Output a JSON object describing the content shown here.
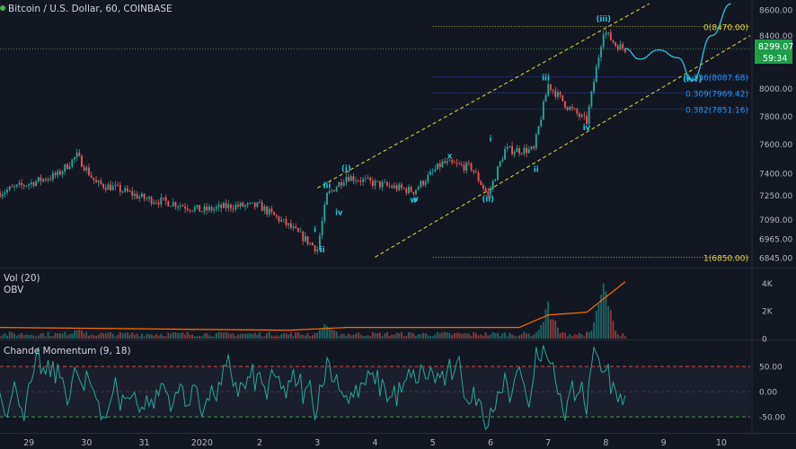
{
  "header": {
    "symbol_title": "Bitcoin / U.S. Dollar, 60, COINBASE"
  },
  "price_badge": {
    "value": "8299.07",
    "countdown": "59:34"
  },
  "colors": {
    "background": "#131722",
    "up_candle": "#26a69a",
    "down_candle": "#ef5350",
    "wave_label": "#26c6da",
    "fib_yellow": "#e6d93c",
    "fib_blue": "#2962ff",
    "projection": "#26c6da",
    "obv_line": "#ff6d00",
    "cmo_line": "#26a69a",
    "level_red": "#ef5350",
    "level_green": "#4caf50",
    "badge_green": "#1e9e4a"
  },
  "wave_labels": [
    {
      "text": "ii",
      "date": "2020-01-03T02:00",
      "price": 6880
    },
    {
      "text": "i",
      "date": "2020-01-02T23:00",
      "price": 7010
    },
    {
      "text": "iii",
      "date": "2020-01-03T04:00",
      "price": 7300
    },
    {
      "text": "(i)",
      "date": "2020-01-03T12:00",
      "price": 7415
    },
    {
      "text": "iv",
      "date": "2020-01-03T09:00",
      "price": 7120
    },
    {
      "text": "v",
      "date": "2020-01-04T17:00",
      "price": 7210
    },
    {
      "text": "w",
      "date": "2020-01-04T16:00",
      "price": 7205
    },
    {
      "text": "x",
      "date": "2020-01-05T07:00",
      "price": 7500
    },
    {
      "text": "(ii)",
      "date": "2020-01-05T23:00",
      "price": 7210
    },
    {
      "text": "i",
      "date": "2020-01-06T00:00",
      "price": 7620
    },
    {
      "text": "ii",
      "date": "2020-01-06T19:00",
      "price": 7410
    },
    {
      "text": "iii",
      "date": "2020-01-06T23:00",
      "price": 8060
    },
    {
      "text": "iv",
      "date": "2020-01-07T16:00",
      "price": 7700
    },
    {
      "text": "(iii)",
      "date": "2020-01-07T23:00",
      "price": 8510
    },
    {
      "text": "(iv?)",
      "date": "2020-01-09T12:00",
      "price": 8050
    }
  ],
  "fib_levels": [
    {
      "label": "0(8470.00)",
      "price": 8470.0,
      "color": "#e6d93c"
    },
    {
      "label": "0.236(8087.68)",
      "price": 8087.68,
      "color": "#2962ff"
    },
    {
      "label": "0.309(7969.42)",
      "price": 7969.42,
      "color": "#2962ff"
    },
    {
      "label": "0.382(7851.16)",
      "price": 7851.16,
      "color": "#2962ff"
    },
    {
      "label": "1(6850.00)",
      "price": 6850.0,
      "color": "#e6d93c"
    }
  ],
  "price_axis_ticks": [
    "8600.00",
    "8400.00",
    "8299.07",
    "8000.00",
    "7800.00",
    "7600.00",
    "7400.00",
    "7250.00",
    "7090.00",
    "6965.00",
    "6845.00"
  ],
  "volume_panel": {
    "title": "Vol (20)",
    "subtitle": "OBV",
    "ticks": [
      "4K",
      "2K",
      "0"
    ]
  },
  "cmo_panel": {
    "title": "Chande Momentum (9, 18)",
    "ticks": [
      "50.00",
      "0.00",
      "-50.00"
    ],
    "upper": 50,
    "lower": -50
  },
  "time_axis_labels": [
    "29",
    "30",
    "31",
    "2020",
    "2",
    "3",
    "4",
    "5",
    "6",
    "7",
    "8",
    "9",
    "10"
  ],
  "chart_data": {
    "type": "candlestick",
    "title": "Bitcoin / U.S. Dollar, 60, COINBASE",
    "interval": "60",
    "x_range": [
      "2019-12-28T12:00",
      "2020-01-10T12:00"
    ],
    "price_axis": {
      "scale": "log",
      "range": [
        6790,
        8680
      ]
    },
    "last_price": 8299.07,
    "price_path_hourly_anchors": [
      {
        "date": "2019-12-28T12:00",
        "price": 7270
      },
      {
        "date": "2019-12-29T00:00",
        "price": 7330
      },
      {
        "date": "2019-12-29T12:00",
        "price": 7390
      },
      {
        "date": "2019-12-29T20:00",
        "price": 7520
      },
      {
        "date": "2019-12-30T04:00",
        "price": 7330
      },
      {
        "date": "2019-12-30T12:00",
        "price": 7300
      },
      {
        "date": "2019-12-31T00:00",
        "price": 7230
      },
      {
        "date": "2019-12-31T12:00",
        "price": 7200
      },
      {
        "date": "2020-01-01T00:00",
        "price": 7150
      },
      {
        "date": "2020-01-01T12:00",
        "price": 7180
      },
      {
        "date": "2020-01-02T00:00",
        "price": 7180
      },
      {
        "date": "2020-01-02T12:00",
        "price": 7050
      },
      {
        "date": "2020-01-03T00:00",
        "price": 6900
      },
      {
        "date": "2020-01-03T04:00",
        "price": 7250
      },
      {
        "date": "2020-01-03T12:00",
        "price": 7380
      },
      {
        "date": "2020-01-04T00:00",
        "price": 7330
      },
      {
        "date": "2020-01-04T16:00",
        "price": 7280
      },
      {
        "date": "2020-01-05T04:00",
        "price": 7470
      },
      {
        "date": "2020-01-05T16:00",
        "price": 7440
      },
      {
        "date": "2020-01-05T23:00",
        "price": 7250
      },
      {
        "date": "2020-01-06T06:00",
        "price": 7560
      },
      {
        "date": "2020-01-06T18:00",
        "price": 7560
      },
      {
        "date": "2020-01-07T00:00",
        "price": 8030
      },
      {
        "date": "2020-01-07T08:00",
        "price": 7870
      },
      {
        "date": "2020-01-07T16:00",
        "price": 7760
      },
      {
        "date": "2020-01-07T23:00",
        "price": 8440
      },
      {
        "date": "2020-01-08T04:00",
        "price": 8330
      },
      {
        "date": "2020-01-08T08:00",
        "price": 8299
      }
    ],
    "projection_path": [
      {
        "date": "2020-01-08T08:00",
        "price": 8300
      },
      {
        "date": "2020-01-08T14:00",
        "price": 8220
      },
      {
        "date": "2020-01-08T22:00",
        "price": 8290
      },
      {
        "date": "2020-01-09T06:00",
        "price": 8230
      },
      {
        "date": "2020-01-09T12:00",
        "price": 8060
      },
      {
        "date": "2020-01-09T20:00",
        "price": 8400
      },
      {
        "date": "2020-01-10T04:00",
        "price": 8650
      }
    ],
    "channel_lines": [
      {
        "from": {
          "date": "2020-01-03T00:00",
          "price": 7300
        },
        "to": {
          "date": "2020-01-08T18:00",
          "price": 8650
        }
      },
      {
        "from": {
          "date": "2020-01-04T00:00",
          "price": 6850
        },
        "to": {
          "date": "2020-01-10T12:00",
          "price": 8400
        }
      }
    ],
    "volume": {
      "unit": "K",
      "range": [
        0,
        4.6
      ],
      "spikes": [
        {
          "date": "2019-12-29T20:00",
          "value": 0.9
        },
        {
          "date": "2020-01-03T04:00",
          "value": 1.3
        },
        {
          "date": "2020-01-07T00:00",
          "value": 2.7
        },
        {
          "date": "2020-01-07T23:00",
          "value": 4.3
        }
      ]
    },
    "obv_anchors": [
      {
        "date": "2019-12-28T12:00",
        "value": 0.8
      },
      {
        "date": "2020-01-02T12:00",
        "value": 0.6
      },
      {
        "date": "2020-01-03T12:00",
        "value": 0.8
      },
      {
        "date": "2020-01-06T12:00",
        "value": 0.8
      },
      {
        "date": "2020-01-07T00:00",
        "value": 1.7
      },
      {
        "date": "2020-01-07T16:00",
        "value": 1.9
      },
      {
        "date": "2020-01-08T08:00",
        "value": 4.1
      }
    ],
    "cmo": {
      "range": [
        -80,
        100
      ],
      "levels": [
        50,
        0,
        -50
      ]
    }
  }
}
